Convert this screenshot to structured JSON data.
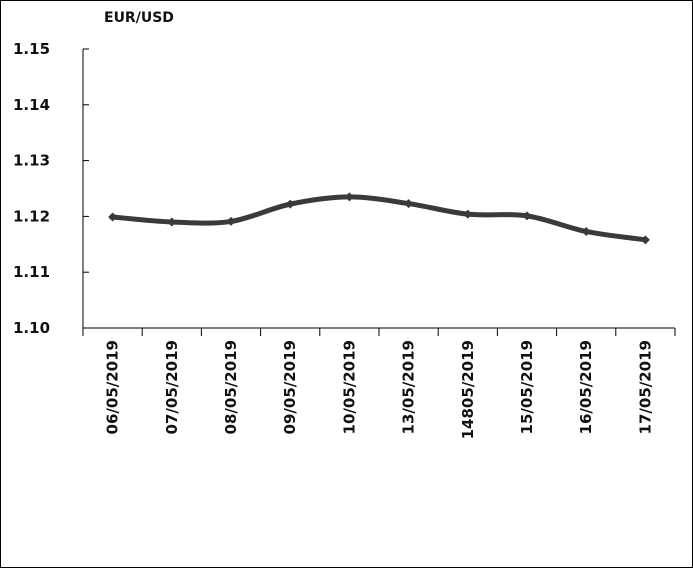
{
  "chart_data": {
    "type": "line",
    "title": "EUR/USD",
    "xlabel": "",
    "ylabel": "",
    "categories": [
      "06/05/2019",
      "07/05/2019",
      "08/05/2019",
      "09/05/2019",
      "10/05/2019",
      "13/05/2019",
      "14805/2019",
      "15/05/2019",
      "16/05/2019",
      "17/05/2019"
    ],
    "series": [
      {
        "values": [
          1.1199,
          1.119,
          1.1191,
          1.1222,
          1.1235,
          1.1223,
          1.1204,
          1.1201,
          1.1173,
          1.1158
        ]
      }
    ],
    "yticks": [
      "1.10",
      "1.11",
      "1.12",
      "1.13",
      "1.14",
      "1.15"
    ],
    "ylim": [
      1.1,
      1.15
    ],
    "grid": false,
    "legend": "none",
    "line_color": "#3a3a3a",
    "marker": "diamond"
  }
}
